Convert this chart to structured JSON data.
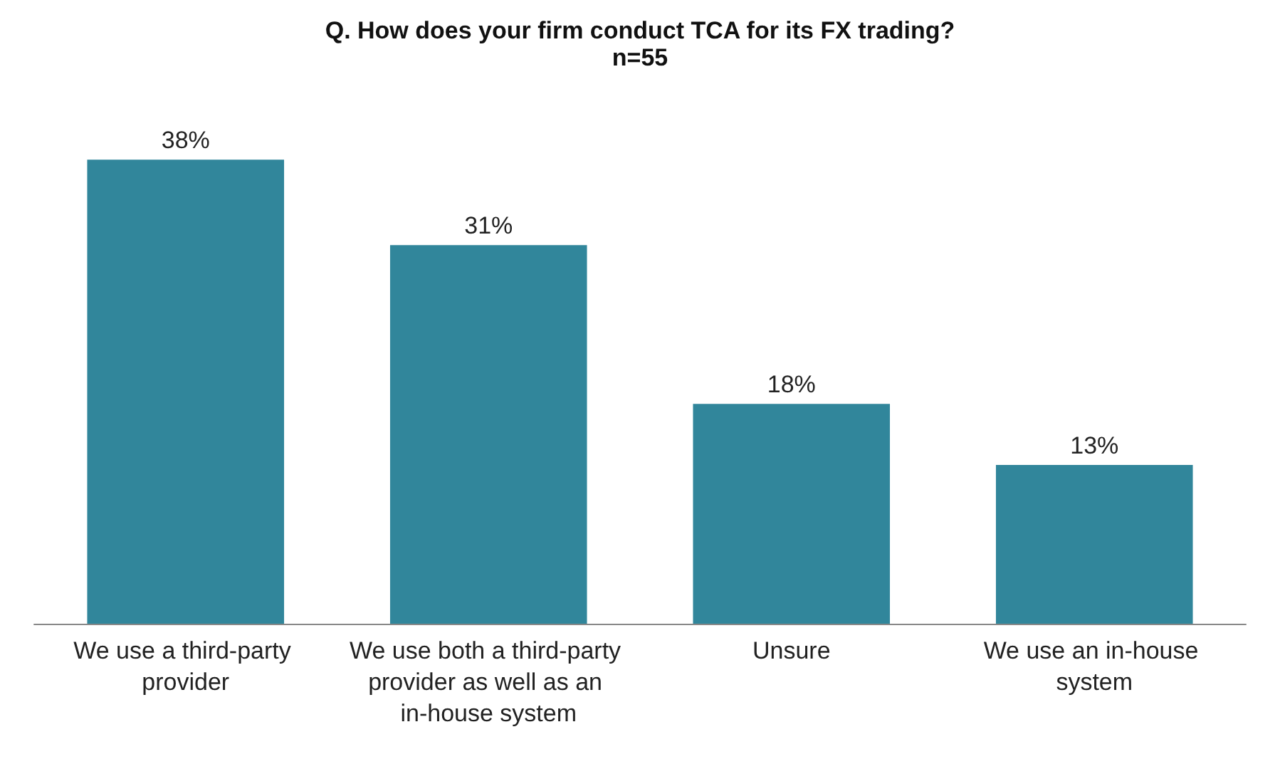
{
  "chart_data": {
    "type": "bar",
    "title": "Q. How does your firm conduct TCA for its FX trading?",
    "subtitle": "n=55",
    "categories": [
      "We use a third-party provider",
      "We use both a third-party provider as well as an in-house system",
      "Unsure",
      "We use an in-house system"
    ],
    "values": [
      38,
      31,
      18,
      13
    ],
    "value_labels": [
      "38%",
      "31%",
      "18%",
      "13%"
    ],
    "color": "#31869b"
  }
}
